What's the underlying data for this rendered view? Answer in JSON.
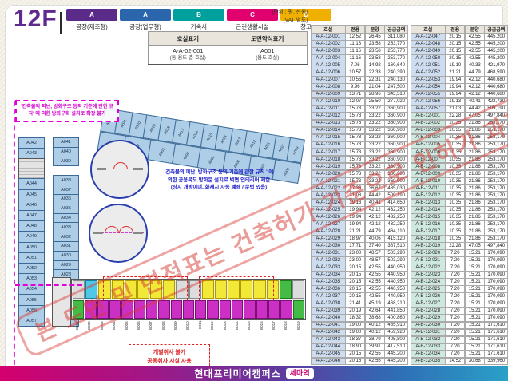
{
  "page": {
    "floor": "12F"
  },
  "legend": {
    "items": [
      {
        "code": "A",
        "label": "공장(제조형)",
        "color": "#5b2b8a"
      },
      {
        "code": "A",
        "label": "공장(업무형)",
        "color": "#2b66ad"
      },
      {
        "code": "B",
        "label": "기숙사",
        "color": "#00a19c"
      },
      {
        "code": "C",
        "label": "근린생활시설",
        "color": "#e0006e"
      },
      {
        "code": "D",
        "label": "창고",
        "color": "#efb000"
      }
    ],
    "unit_note": "[단위 : 평, 천원]",
    "vat_note": "[VAT 별도]"
  },
  "notation": {
    "col1_header": "호실표기",
    "col2_header": "도면약식표기",
    "col1_value": "A-A-02-001",
    "col1_sub": "(동-용도-층-호실)",
    "col2_value": "A001",
    "col2_sub": "(용도 호실)"
  },
  "plan": {
    "note_fireblock": "'건축물의 피난, 방화구조 등의 기준에 관한 규칙' 에 의한 방화구획 설치로 확장 불가",
    "note_firedoor_line1": "'건축물의 피난, 방화구조 등의 기준에 관한 규칙 ' 에",
    "note_firedoor_line2": "의한 공용복도 방화문 설치로 벽면 인테리어 제한",
    "note_firedoor_line3": "(상시 개방이며, 화재시 자동 폐쇄 / 문턱 있음)",
    "note_kitchen_line1": "개별취사 불가",
    "note_kitchen_line2": "공동취사 시설 사용",
    "stamp": "본 도면 및 면적표는 건축허가 기준으로 인허가 과정 중 변경될 수 있음",
    "left_wing_col1": [
      "A042",
      "A043",
      "A044",
      "A045",
      "A046",
      "A047",
      "A048",
      "A049",
      "A050",
      "A051",
      "A052",
      "A053",
      "A054",
      "A055",
      "A056",
      "A057"
    ],
    "left_wing_col2": [
      "A041",
      "A040",
      "A039",
      "A038",
      "A037",
      "A036",
      "A035",
      "A034",
      "A033",
      "A032",
      "A031",
      "A030",
      "A029",
      "A028",
      "A027",
      "A026",
      "A025",
      "A024",
      "A023"
    ],
    "top_wing_row1": [
      "A022",
      "A021",
      "A020",
      "A019",
      "A018",
      "A017",
      "A016",
      "A015",
      "A014",
      "A013",
      "A012",
      "A011",
      "A010",
      "A009"
    ],
    "top_wing_row2": [
      "A001",
      "A002",
      "A003",
      "A004",
      "A005",
      "A006",
      "A007",
      "A008"
    ],
    "bottom_wing_labels": [
      "B001",
      "B002",
      "B003",
      "B004",
      "B005",
      "B006",
      "B007",
      "B008",
      "B009",
      "B010",
      "B011",
      "B012",
      "B013",
      "B014",
      "B015",
      "B016",
      "B017",
      "B018",
      "B019"
    ]
  },
  "tables": {
    "headers": [
      "호실",
      "전용",
      "분양",
      "공급금액"
    ],
    "left": [
      [
        "A-A-12-001",
        "12.52",
        "26.45",
        "311,080"
      ],
      [
        "A-A-12-002",
        "11.16",
        "23.58",
        "253,770"
      ],
      [
        "A-A-12-003",
        "11.16",
        "23.58",
        "253,770"
      ],
      [
        "A-A-12-004",
        "11.16",
        "23.58",
        "253,770"
      ],
      [
        "A-A-12-005",
        "7.06",
        "14.92",
        "160,640"
      ],
      [
        "A-A-12-006",
        "10.57",
        "22.33",
        "240,390"
      ],
      [
        "A-A-12-007",
        "10.56",
        "22.31",
        "240,130"
      ],
      [
        "A-A-12-008",
        "9.96",
        "21.04",
        "247,500"
      ],
      [
        "A-A-12-009",
        "13.71",
        "28.96",
        "343,510"
      ],
      [
        "A-A-12-010",
        "12.07",
        "25.50",
        "277,020"
      ],
      [
        "A-A-12-011",
        "15.73",
        "33.22",
        "360,900"
      ],
      [
        "A-A-12-012",
        "15.73",
        "33.22",
        "360,900"
      ],
      [
        "A-A-12-013",
        "15.73",
        "33.22",
        "360,900"
      ],
      [
        "A-A-12-014",
        "15.73",
        "33.22",
        "360,900"
      ],
      [
        "A-A-12-015",
        "15.73",
        "33.22",
        "360,900"
      ],
      [
        "A-A-12-016",
        "15.73",
        "33.22",
        "360,900"
      ],
      [
        "A-A-12-017",
        "15.73",
        "33.22",
        "360,900"
      ],
      [
        "A-A-12-018",
        "15.73",
        "33.22",
        "360,900"
      ],
      [
        "A-A-12-019",
        "15.73",
        "33.22",
        "360,900"
      ],
      [
        "A-A-12-020",
        "15.73",
        "33.22",
        "360,900"
      ],
      [
        "A-A-12-021",
        "15.73",
        "33.22",
        "360,900"
      ],
      [
        "A-A-12-022",
        "17.36",
        "36.67",
        "435,030"
      ],
      [
        "A-A-12-023",
        "21.03",
        "44.42",
        "509,190"
      ],
      [
        "A-A-12-024",
        "19.13",
        "40.41",
        "414,650"
      ],
      [
        "A-A-12-025",
        "19.94",
        "42.12",
        "432,250"
      ],
      [
        "A-A-12-026",
        "19.94",
        "42.12",
        "432,250"
      ],
      [
        "A-A-12-027",
        "19.94",
        "42.12",
        "432,250"
      ],
      [
        "A-A-12-028",
        "21.21",
        "44.79",
        "464,110"
      ],
      [
        "A-A-12-029",
        "18.97",
        "40.06",
        "415,120"
      ],
      [
        "A-A-12-030",
        "17.71",
        "37.40",
        "387,510"
      ],
      [
        "A-A-12-031",
        "23.00",
        "48.57",
        "503,290"
      ],
      [
        "A-A-12-032",
        "23.00",
        "48.57",
        "503,290"
      ],
      [
        "A-A-12-033",
        "20.15",
        "42.55",
        "440,950"
      ],
      [
        "A-A-12-034",
        "20.15",
        "42.55",
        "440,950"
      ],
      [
        "A-A-12-035",
        "20.15",
        "42.55",
        "440,950"
      ],
      [
        "A-A-12-036",
        "20.15",
        "42.55",
        "440,950"
      ],
      [
        "A-A-12-037",
        "20.15",
        "42.55",
        "440,950"
      ],
      [
        "A-A-12-038",
        "21.41",
        "45.19",
        "468,210"
      ],
      [
        "A-A-12-039",
        "20.19",
        "42.64",
        "441,850"
      ],
      [
        "A-A-12-040",
        "18.32",
        "38.68",
        "400,860"
      ],
      [
        "A-A-12-041",
        "19.00",
        "40.12",
        "455,910"
      ],
      [
        "A-A-12-042",
        "19.00",
        "40.12",
        "459,920"
      ],
      [
        "A-A-12-043",
        "18.37",
        "38.79",
        "405,800"
      ],
      [
        "A-A-12-044",
        "18.90",
        "39.91",
        "417,510"
      ],
      [
        "A-A-12-045",
        "20.15",
        "42.55",
        "445,200"
      ],
      [
        "A-A-12-046",
        "20.15",
        "42.55",
        "445,200"
      ]
    ],
    "right": [
      [
        "A-A-12-047",
        "20.15",
        "42.55",
        "445,200"
      ],
      [
        "A-A-12-048",
        "20.15",
        "42.55",
        "445,200"
      ],
      [
        "A-A-12-049",
        "20.15",
        "42.55",
        "445,200"
      ],
      [
        "A-A-12-050",
        "20.15",
        "42.55",
        "445,200"
      ],
      [
        "A-A-12-051",
        "19.10",
        "40.33",
        "421,970"
      ],
      [
        "A-A-12-052",
        "21.21",
        "44.79",
        "468,590"
      ],
      [
        "A-A-12-053",
        "19.94",
        "42.12",
        "440,680"
      ],
      [
        "A-A-12-054",
        "19.94",
        "42.12",
        "440,680"
      ],
      [
        "A-A-12-055",
        "19.94",
        "42.12",
        "440,680"
      ],
      [
        "A-A-12-056",
        "19.13",
        "40.41",
        "422,730"
      ],
      [
        "A-A-12-057",
        "21.03",
        "44.42",
        "509,190"
      ],
      [
        "A-B-12-001",
        "22.28",
        "47.05",
        "497,840"
      ],
      [
        "A-B-12-002",
        "10.35",
        "21.86",
        "253,170"
      ],
      [
        "A-B-12-003",
        "10.35",
        "21.86",
        "253,170"
      ],
      [
        "A-B-12-004",
        "10.35",
        "21.86",
        "253,170"
      ],
      [
        "A-B-12-005",
        "10.35",
        "21.86",
        "253,170"
      ],
      [
        "A-B-12-006",
        "10.35",
        "21.86",
        "253,170"
      ],
      [
        "A-B-12-007",
        "10.35",
        "21.86",
        "253,170"
      ],
      [
        "A-B-12-008",
        "10.35",
        "21.86",
        "253,170"
      ],
      [
        "A-B-12-009",
        "10.35",
        "21.86",
        "253,170"
      ],
      [
        "A-B-12-010",
        "10.35",
        "21.86",
        "253,170"
      ],
      [
        "A-B-12-011",
        "10.35",
        "21.86",
        "253,170"
      ],
      [
        "A-B-12-012",
        "10.35",
        "21.86",
        "253,170"
      ],
      [
        "A-B-12-013",
        "10.35",
        "21.86",
        "253,170"
      ],
      [
        "A-B-12-014",
        "10.35",
        "21.86",
        "253,170"
      ],
      [
        "A-B-12-015",
        "10.35",
        "21.86",
        "253,170"
      ],
      [
        "A-B-12-016",
        "10.35",
        "21.86",
        "253,170"
      ],
      [
        "A-B-12-017",
        "10.35",
        "21.86",
        "253,170"
      ],
      [
        "A-B-12-018",
        "10.35",
        "21.86",
        "253,170"
      ],
      [
        "A-B-12-019",
        "22.28",
        "47.05",
        "497,840"
      ],
      [
        "A-B-12-020",
        "7.20",
        "15.21",
        "170,090"
      ],
      [
        "A-B-12-021",
        "7.20",
        "15.21",
        "170,090"
      ],
      [
        "A-B-12-022",
        "7.20",
        "15.21",
        "170,090"
      ],
      [
        "A-B-12-023",
        "7.20",
        "15.21",
        "170,090"
      ],
      [
        "A-B-12-024",
        "7.20",
        "15.21",
        "170,090"
      ],
      [
        "A-B-12-025",
        "7.20",
        "15.21",
        "170,090"
      ],
      [
        "A-B-12-026",
        "7.20",
        "15.21",
        "170,090"
      ],
      [
        "A-B-12-027",
        "7.20",
        "15.21",
        "170,090"
      ],
      [
        "A-B-12-028",
        "7.20",
        "15.21",
        "170,090"
      ],
      [
        "A-B-12-029",
        "7.20",
        "15.21",
        "170,090"
      ],
      [
        "A-B-12-030",
        "7.20",
        "15.21",
        "171,610"
      ],
      [
        "A-B-12-031",
        "7.20",
        "15.21",
        "171,610"
      ],
      [
        "A-B-12-032",
        "7.20",
        "15.21",
        "171,610"
      ],
      [
        "A-B-12-033",
        "7.20",
        "15.21",
        "171,610"
      ],
      [
        "A-B-12-034",
        "7.20",
        "15.21",
        "171,610"
      ],
      [
        "A-B-12-035",
        "14.52",
        "30.68",
        "339,960"
      ]
    ]
  },
  "footer": {
    "brand": "현대프리미어캠퍼스",
    "station": "세마역"
  }
}
